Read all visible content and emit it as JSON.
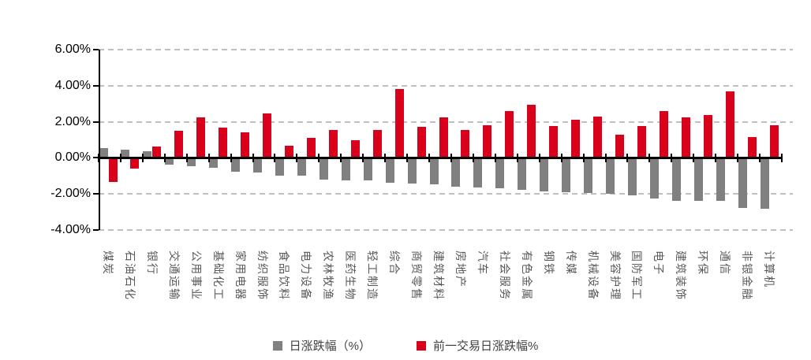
{
  "chart_data": {
    "type": "bar",
    "title": "",
    "xlabel": "",
    "ylabel": "",
    "categories": [
      "煤炭",
      "石油石化",
      "银行",
      "交通运输",
      "公用事业",
      "基础化工",
      "家用电器",
      "纺织服饰",
      "食品饮料",
      "电力设备",
      "农林牧渔",
      "医药生物",
      "轻工制造",
      "综合",
      "商贸零售",
      "建筑材料",
      "房地产",
      "汽车",
      "社会服务",
      "有色金属",
      "钢铁",
      "传媒",
      "机械设备",
      "美容护理",
      "国防军工",
      "电子",
      "建筑装饰",
      "环保",
      "通信",
      "非银金融",
      "计算机"
    ],
    "series": [
      {
        "name": "日涨跌幅（%）",
        "color": "#808080",
        "values": [
          0.55,
          0.45,
          0.35,
          -0.3,
          -0.4,
          -0.48,
          -0.72,
          -0.76,
          -0.9,
          -0.93,
          -1.12,
          -1.17,
          -1.2,
          -1.3,
          -1.37,
          -1.42,
          -1.52,
          -1.56,
          -1.6,
          -1.71,
          -1.8,
          -1.85,
          -1.88,
          -1.92,
          -2.0,
          -2.18,
          -2.3,
          -2.32,
          -2.34,
          -2.72,
          -2.76
        ]
      },
      {
        "name": "前一交易日涨跌幅%",
        "color": "#d9001b",
        "values": [
          -1.29,
          -0.52,
          0.65,
          1.51,
          2.26,
          1.68,
          1.4,
          2.45,
          0.66,
          1.09,
          1.56,
          0.96,
          1.53,
          3.82,
          1.71,
          2.23,
          1.53,
          1.8,
          2.6,
          2.95,
          1.78,
          2.12,
          2.29,
          1.27,
          1.78,
          2.61,
          2.26,
          2.39,
          3.67,
          1.15,
          1.8
        ]
      }
    ],
    "yticks": [
      {
        "value": 6,
        "label": "6.00%"
      },
      {
        "value": 4,
        "label": "4.00%"
      },
      {
        "value": 2,
        "label": "2.00%"
      },
      {
        "value": 0,
        "label": "0.00%"
      },
      {
        "value": -2,
        "label": "-2.00%"
      },
      {
        "value": -4,
        "label": "-4.00%"
      }
    ],
    "ylim": [
      -4,
      6
    ],
    "grid": "horizontal dashed",
    "gridline_color": "#bfbfbf",
    "axis_color": "#000000",
    "category_label_color": "#595959",
    "legend_position": "bottom"
  }
}
